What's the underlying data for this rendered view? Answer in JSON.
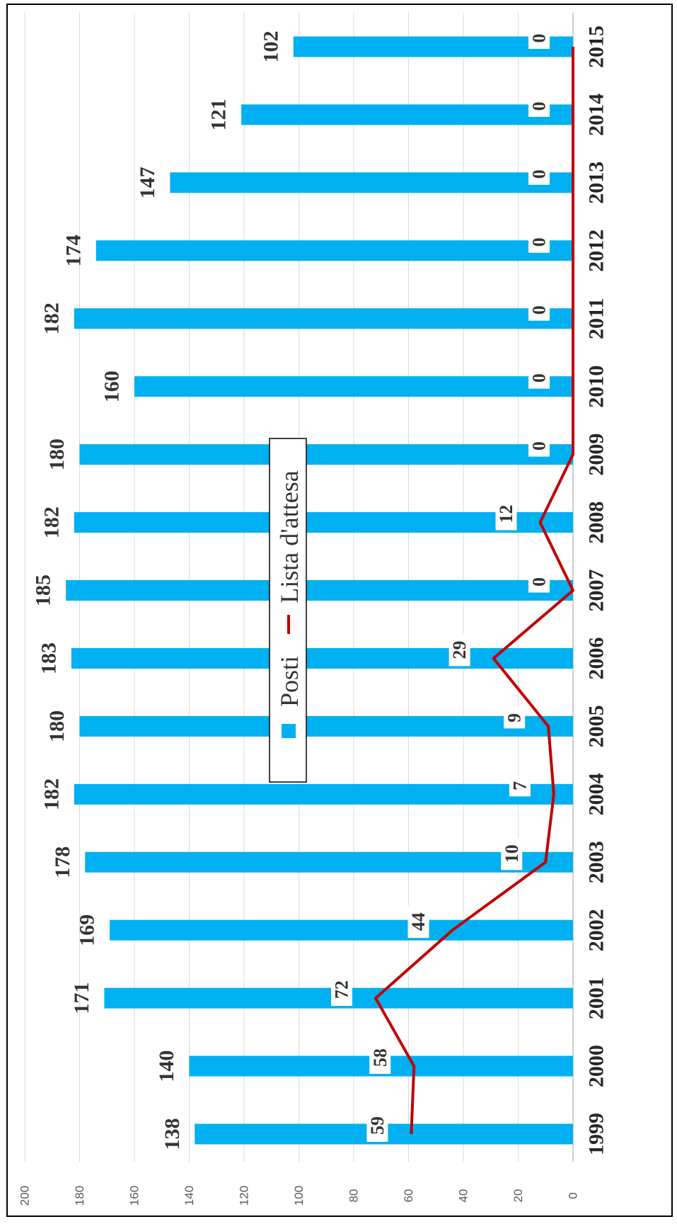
{
  "chart_data": {
    "type": "bar",
    "categories": [
      "1999",
      "2000",
      "2001",
      "2002",
      "2003",
      "2004",
      "2005",
      "2006",
      "2007",
      "2008",
      "2009",
      "2010",
      "2011",
      "2012",
      "2013",
      "2014",
      "2015"
    ],
    "series": [
      {
        "name": "Posti",
        "kind": "bar",
        "color": "#00b0f0",
        "values": [
          138,
          140,
          171,
          169,
          178,
          182,
          180,
          183,
          185,
          182,
          180,
          160,
          182,
          174,
          147,
          121,
          102
        ]
      },
      {
        "name": "Lista d'attesa",
        "kind": "line",
        "color": "#c00000",
        "values": [
          59,
          58,
          72,
          44,
          10,
          7,
          9,
          29,
          0,
          12,
          0,
          0,
          0,
          0,
          0,
          0,
          0
        ]
      }
    ],
    "ylim": [
      0,
      200
    ],
    "yticks": [
      "0",
      "20",
      "40",
      "60",
      "80",
      "100",
      "120",
      "140",
      "160",
      "180",
      "200"
    ],
    "grid": true,
    "legend_position": "center",
    "orientation": "rotated 90 degrees clockwise"
  }
}
